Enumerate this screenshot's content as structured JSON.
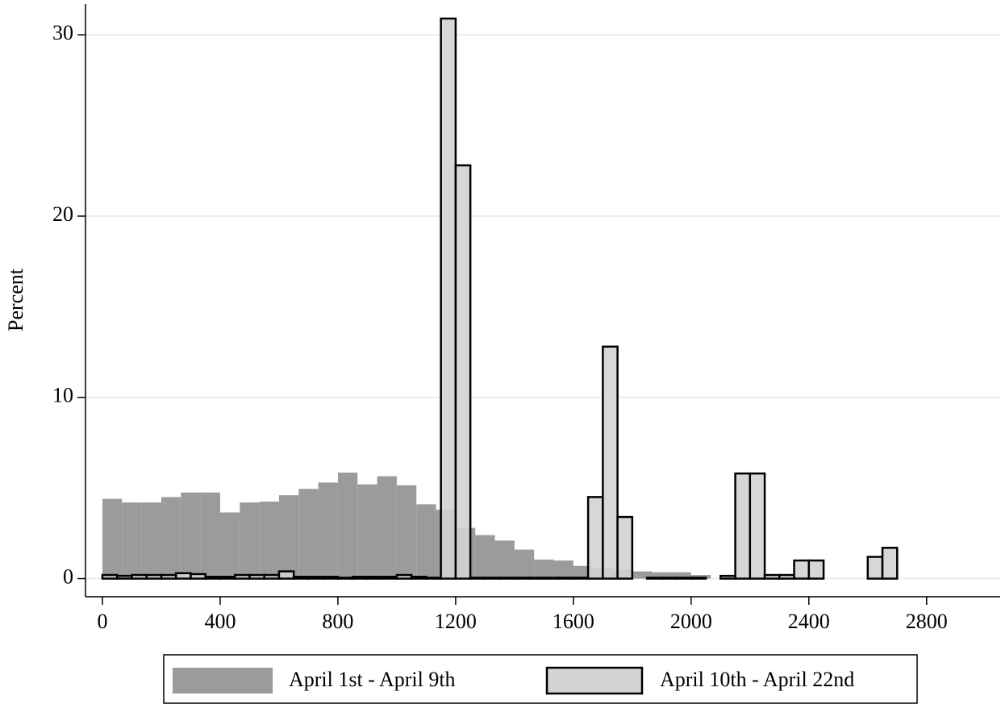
{
  "chart_data": {
    "type": "histogram",
    "y_label": "Percent",
    "xlim": [
      -57.5,
      3050
    ],
    "ylim": [
      -1,
      31.7
    ],
    "xticks": [
      0,
      400,
      800,
      1200,
      1600,
      2000,
      2400,
      2800
    ],
    "yticks": [
      0,
      10,
      20,
      30
    ],
    "grid": true,
    "legend": "bottom",
    "series": [
      {
        "name": "April 1st - April 9th",
        "color": "#9b9b9b",
        "outline": false,
        "bins": [
          0,
          66.67,
          133.33,
          200,
          266.67,
          333.33,
          400,
          466.67,
          533.33,
          600,
          666.67,
          733.33,
          800,
          866.67,
          933.33,
          1000,
          1066.67,
          1133.33,
          1200,
          1266.67,
          1333.33,
          1400,
          1466.67,
          1533.33,
          1600,
          1666.67,
          1733.33,
          1800,
          1866.67,
          1933.33,
          2000,
          2066.67
        ],
        "values": [
          4.4,
          4.2,
          4.2,
          4.5,
          4.75,
          4.75,
          3.65,
          4.2,
          4.25,
          4.6,
          4.95,
          5.3,
          5.85,
          5.2,
          5.65,
          5.15,
          4.1,
          3.8,
          2.8,
          2.4,
          2.1,
          1.6,
          1.05,
          1.0,
          0.7,
          0.6,
          0.5,
          0.4,
          0.35,
          0.35,
          0.2
        ]
      },
      {
        "name": "April 10th - April 22nd",
        "color": "#d3d3d3",
        "outline": true,
        "bins": [
          0,
          50,
          100,
          150,
          200,
          250,
          300,
          350,
          400,
          450,
          500,
          550,
          600,
          650,
          700,
          750,
          800,
          850,
          900,
          950,
          1000,
          1050,
          1100,
          1150,
          1200,
          1250,
          1300,
          1350,
          1400,
          1450,
          1500,
          1550,
          1600,
          1650,
          1700,
          1750,
          1800,
          1850,
          1900,
          1950,
          2000,
          2050,
          2100,
          2150,
          2200,
          2250,
          2300,
          2350,
          2400,
          2450,
          2500,
          2550,
          2600,
          2650,
          2700
        ],
        "values": [
          0.2,
          0.15,
          0.2,
          0.2,
          0.2,
          0.3,
          0.25,
          0.1,
          0.1,
          0.2,
          0.2,
          0.2,
          0.4,
          0.1,
          0.1,
          0.1,
          0.05,
          0.1,
          0.1,
          0.1,
          0.2,
          0.1,
          0.05,
          30.9,
          22.8,
          0.05,
          0.05,
          0.05,
          0.05,
          0.05,
          0.05,
          0.05,
          0.05,
          4.5,
          12.8,
          3.4,
          0,
          0.05,
          0.05,
          0.05,
          0.05,
          0,
          0.15,
          5.8,
          5.8,
          0.2,
          0.2,
          1.0,
          1.0,
          0,
          0,
          0,
          1.2,
          1.7
        ]
      }
    ]
  }
}
